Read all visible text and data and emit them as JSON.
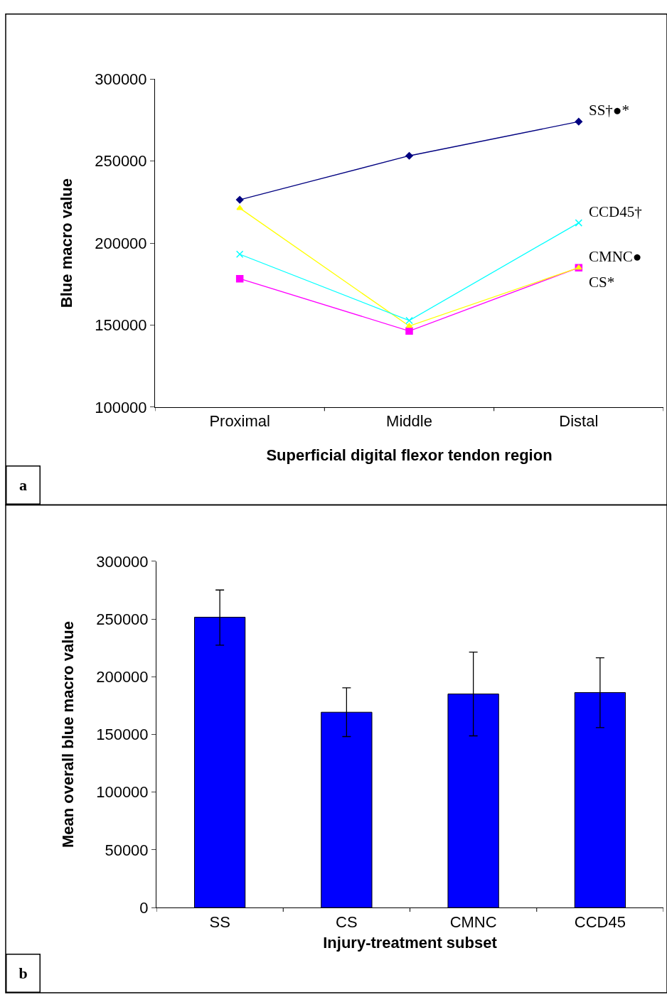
{
  "chart_data": [
    {
      "type": "line",
      "xlabel": "Superficial digital flexor tendon region",
      "ylabel": "Blue macro value",
      "categories": [
        "Proximal",
        "Middle",
        "Distal"
      ],
      "ylim": [
        100000,
        300000
      ],
      "yticks": [
        100000,
        150000,
        200000,
        250000,
        300000
      ],
      "line_style": "solid",
      "annotations": [
        "a"
      ],
      "series": [
        {
          "name": "SS†●*",
          "color": "#000080",
          "marker": "diamond",
          "values": [
            226400,
            253200,
            274000
          ]
        },
        {
          "name": "CCD45†",
          "color": "#00ffff",
          "marker": "cross",
          "values": [
            193200,
            152800,
            212300
          ]
        },
        {
          "name": "CMNC●",
          "color": "#ffff00",
          "marker": "triangle",
          "values": [
            221300,
            149400,
            185000
          ]
        },
        {
          "name": "CS*",
          "color": "#ff00ff",
          "marker": "square",
          "values": [
            178300,
            146400,
            185000
          ]
        }
      ]
    },
    {
      "type": "bar",
      "xlabel": "Injury-treatment subset",
      "ylabel": "Mean overall blue macro value",
      "categories": [
        "SS",
        "CS",
        "CMNC",
        "CCD45"
      ],
      "ylim": [
        0,
        300000
      ],
      "yticks": [
        0,
        50000,
        100000,
        150000,
        200000,
        250000,
        300000
      ],
      "annotations": [
        "b"
      ],
      "series": [
        {
          "color": "#0000ff",
          "values": [
            251600,
            169300,
            185100,
            186300
          ],
          "errors": [
            [
              227400,
              275200
            ],
            [
              148200,
              190500
            ],
            [
              148800,
              221400
            ],
            [
              156000,
              216500
            ]
          ]
        }
      ]
    }
  ]
}
